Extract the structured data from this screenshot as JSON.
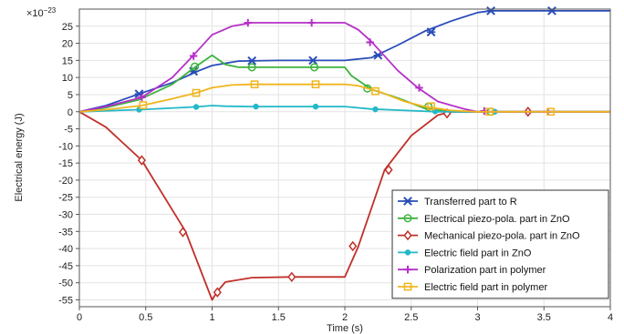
{
  "chart_data": {
    "type": "line",
    "xlabel": "Time (s)",
    "ylabel": "Electrical energy (J)",
    "y_multiplier": "×10",
    "y_multiplier_exp": "−23",
    "xlim": [
      0,
      4
    ],
    "ylim": [
      -57,
      30
    ],
    "x_ticks": [
      0,
      0.5,
      1,
      1.5,
      2,
      2.5,
      3,
      3.5,
      4
    ],
    "x_tick_labels": [
      "0",
      "0.5",
      "1",
      "1.5",
      "2",
      "2.5",
      "3",
      "3.5",
      "4"
    ],
    "y_ticks": [
      25,
      20,
      15,
      10,
      5,
      0,
      -5,
      -10,
      -15,
      -20,
      -25,
      -30,
      -35,
      -40,
      -45,
      -50,
      -55
    ],
    "y_tick_labels": [
      "25",
      "20",
      "15",
      "10",
      "5",
      "0",
      "-5",
      "-10",
      "-15",
      "-20",
      "-25",
      "-30",
      "-35",
      "-40",
      "-45",
      "-50",
      "-55"
    ],
    "grid": true,
    "legend_position": "bottom-right",
    "series": [
      {
        "name": "Transferred part to R",
        "color": "#2a4db8",
        "marker": "asterisk",
        "x": [
          0,
          0.2,
          0.45,
          0.7,
          0.9,
          1.0,
          1.2,
          1.5,
          1.8,
          2.0,
          2.2,
          2.4,
          2.6,
          2.8,
          3.0,
          3.1,
          3.5,
          4.0
        ],
        "y": [
          0,
          1.8,
          5.2,
          8.5,
          12.0,
          13.5,
          14.8,
          15.0,
          15.0,
          15.0,
          15.8,
          19.5,
          23.5,
          26.5,
          29.0,
          29.5,
          29.5,
          29.5
        ],
        "marker_x": [
          0.45,
          0.86,
          1.3,
          1.76,
          2.25,
          2.65,
          3.1,
          3.56
        ],
        "marker_y": [
          5.2,
          11.8,
          14.9,
          15.0,
          16.5,
          23.3,
          29.5,
          29.5
        ]
      },
      {
        "name": "Electrical piezo-pola. part in ZnO",
        "color": "#3db33d",
        "marker": "circle",
        "x": [
          0,
          0.2,
          0.45,
          0.7,
          0.87,
          1.0,
          1.1,
          1.2,
          1.3,
          1.6,
          1.8,
          2.0,
          2.05,
          2.2,
          2.4,
          2.6,
          2.8,
          3.0,
          4.0
        ],
        "y": [
          0,
          1.2,
          3.5,
          8.0,
          13.0,
          16.5,
          13.8,
          13.0,
          13.0,
          13.0,
          13.0,
          13.0,
          10.5,
          6.5,
          4.0,
          1.0,
          0.0,
          0.0,
          0.0
        ],
        "marker_x": [
          0.87,
          1.3,
          1.77,
          2.17,
          2.63,
          3.1
        ],
        "marker_y": [
          13.2,
          13.0,
          13.0,
          6.8,
          1.5,
          0.0
        ]
      },
      {
        "name": "Mechanical piezo-pola. part in ZnO",
        "color": "#c0302a",
        "marker": "diamond",
        "x": [
          0,
          0.2,
          0.47,
          0.8,
          1.0,
          1.04,
          1.1,
          1.3,
          1.6,
          1.9,
          2.0,
          2.1,
          2.3,
          2.5,
          2.7,
          2.8,
          3.0,
          4.0
        ],
        "y": [
          0,
          -4.5,
          -14.2,
          -35.0,
          -55.0,
          -52.5,
          -49.8,
          -48.5,
          -48.3,
          -48.3,
          -48.3,
          -39.5,
          -17.0,
          -7.0,
          -1.0,
          0.0,
          0.0,
          0.0
        ],
        "marker_x": [
          0.47,
          0.78,
          1.04,
          1.6,
          2.06,
          2.33,
          2.77,
          3.38
        ],
        "marker_y": [
          -14.2,
          -35.2,
          -52.8,
          -48.3,
          -39.3,
          -17.0,
          -0.5,
          0.0
        ]
      },
      {
        "name": "Electric field part in ZnO",
        "color": "#22b8c8",
        "marker": "dot",
        "x": [
          0,
          0.45,
          0.87,
          1.0,
          1.1,
          1.3,
          1.8,
          2.0,
          2.2,
          2.5,
          2.7,
          3.0,
          4.0
        ],
        "y": [
          0,
          0.6,
          1.4,
          1.8,
          1.6,
          1.5,
          1.5,
          1.5,
          0.8,
          0.3,
          0.0,
          0.0,
          0.0
        ],
        "marker_x": [
          0.45,
          0.88,
          1.33,
          1.78,
          2.23,
          2.68,
          3.13
        ],
        "marker_y": [
          0.6,
          1.4,
          1.5,
          1.5,
          0.7,
          0.1,
          0.0
        ]
      },
      {
        "name": "Polarization part in polymer",
        "color": "#b530c8",
        "marker": "plus",
        "x": [
          0,
          0.2,
          0.47,
          0.7,
          0.86,
          1.0,
          1.15,
          1.3,
          1.6,
          1.9,
          2.0,
          2.1,
          2.2,
          2.4,
          2.55,
          2.7,
          2.9,
          3.0,
          4.0
        ],
        "y": [
          0,
          1.5,
          4.2,
          10.0,
          16.5,
          22.5,
          25.0,
          26.0,
          26.0,
          26.0,
          26.0,
          24.0,
          20.5,
          12.0,
          7.0,
          3.0,
          0.8,
          0.0,
          0.0
        ],
        "marker_x": [
          0.47,
          0.86,
          1.27,
          1.75,
          2.19,
          2.56,
          3.05,
          3.53
        ],
        "marker_y": [
          4.2,
          16.3,
          26.0,
          26.0,
          20.3,
          7.0,
          0.2,
          0.0
        ]
      },
      {
        "name": "Electric field part in polymer",
        "color": "#f0b51e",
        "marker": "square",
        "x": [
          0,
          0.2,
          0.47,
          0.7,
          0.88,
          1.0,
          1.15,
          1.3,
          1.6,
          1.8,
          2.0,
          2.1,
          2.25,
          2.45,
          2.6,
          2.8,
          3.0,
          4.0
        ],
        "y": [
          0,
          0.6,
          1.8,
          3.8,
          5.5,
          7.0,
          7.8,
          8.0,
          8.0,
          8.0,
          8.0,
          7.6,
          6.0,
          3.0,
          1.5,
          0.4,
          0.0,
          0.0
        ],
        "marker_x": [
          0.48,
          0.88,
          1.32,
          1.78,
          2.23,
          2.65,
          3.09,
          3.55
        ],
        "marker_y": [
          1.9,
          5.5,
          8.0,
          8.0,
          6.0,
          1.6,
          0.0,
          0.0
        ]
      }
    ]
  }
}
